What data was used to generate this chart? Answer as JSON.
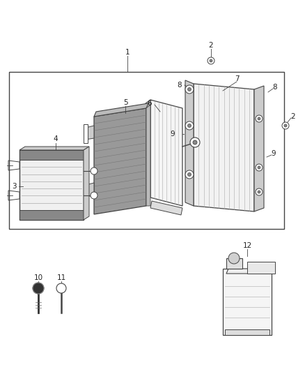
{
  "bg_color": "#ffffff",
  "fig_width": 4.38,
  "fig_height": 5.33,
  "dpi": 100,
  "lc": "#444444",
  "tc": "#222222",
  "fs": 7.5
}
